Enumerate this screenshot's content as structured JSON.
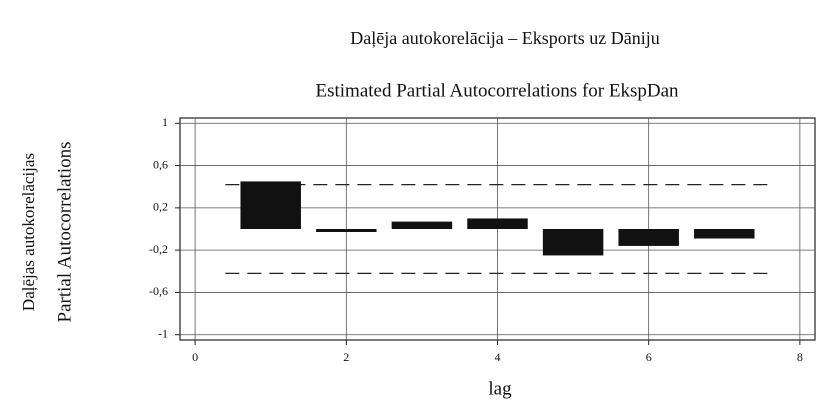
{
  "chart_data": {
    "type": "bar",
    "title": "Daļēja autokorelācija – Eksports uz Dāniju",
    "subtitle": "Estimated Partial Autocorrelations for EkspDan",
    "ylabel": [
      "Daļējas autokorelācijas",
      "Partial Autocorrelations"
    ],
    "xlabel": "lag",
    "x": [
      1,
      2,
      3,
      4,
      5,
      6,
      7
    ],
    "values": [
      0.45,
      -0.02,
      0.07,
      0.1,
      -0.25,
      -0.16,
      -0.09
    ],
    "color": "#111111",
    "bounds": {
      "upper": 0.42,
      "lower": -0.42
    },
    "xlim": [
      -0.2,
      8.2
    ],
    "xticks": [
      0,
      2,
      4,
      6,
      8
    ],
    "ylim": [
      -1.05,
      1.05
    ],
    "yticks": [
      1,
      {
        "value": 0.6,
        "label": "0,6"
      },
      {
        "value": 0.2,
        "label": "0,2"
      },
      {
        "value": -0.2,
        "label": "-0,2"
      },
      {
        "value": -0.6,
        "label": "-0,6"
      },
      -1
    ],
    "grid": true
  }
}
